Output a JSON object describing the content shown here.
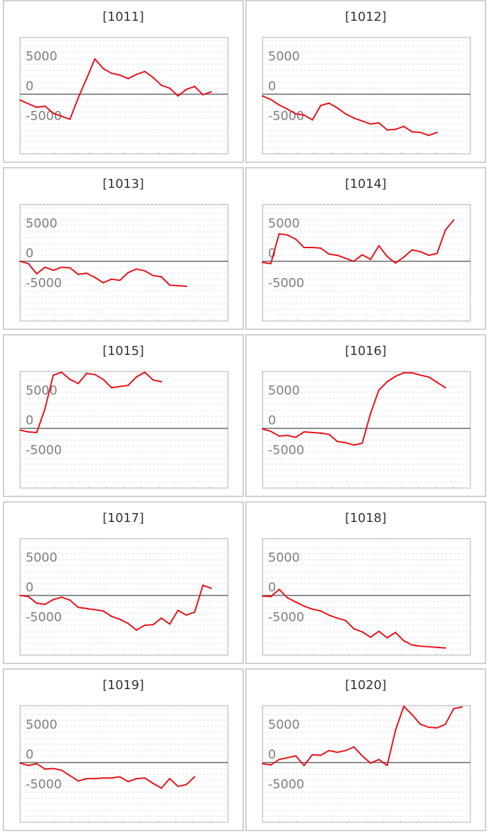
{
  "colors": {
    "series": "#e8101a",
    "axis": "#666666",
    "frame": "#c8c8c8",
    "grid": "#e4e4e4",
    "tick": "#808080",
    "border": "#d0d0d0"
  },
  "chart_data": [
    {
      "type": "line",
      "title": "[1011]",
      "yticks": [
        5000,
        0,
        -5000
      ],
      "ylim": [
        -7500,
        7500
      ],
      "grid": true,
      "values": [
        -1000,
        -1600,
        -2200,
        -2000,
        -3200,
        -3700,
        -4200,
        -600,
        2600,
        5900,
        4300,
        3500,
        3200,
        2600,
        3300,
        3800,
        2800,
        1500,
        1000,
        -300,
        800,
        1300,
        -100,
        400
      ]
    },
    {
      "type": "line",
      "title": "[1012]",
      "yticks": [
        5000,
        0,
        -5000
      ],
      "ylim": [
        -7500,
        7500
      ],
      "grid": true,
      "values": [
        -300,
        -900,
        -1800,
        -2500,
        -3300,
        -3500,
        -4300,
        -1900,
        -1500,
        -2300,
        -3300,
        -4000,
        -4500,
        -5000,
        -4800,
        -6000,
        -5900,
        -5400,
        -6300,
        -6400,
        -6900,
        -6400
      ]
    },
    {
      "type": "line",
      "title": "[1013]",
      "yticks": [
        5000,
        0,
        -5000
      ],
      "ylim": [
        -7500,
        7500
      ],
      "grid": true,
      "values": [
        0,
        -400,
        -2100,
        -1000,
        -1500,
        -1000,
        -1100,
        -2200,
        -2000,
        -2700,
        -3600,
        -3000,
        -3200,
        -1900,
        -1300,
        -1600,
        -2400,
        -2600,
        -4000,
        -4100,
        -4200
      ]
    },
    {
      "type": "line",
      "title": "[1014]",
      "yticks": [
        5000,
        0,
        -5000
      ],
      "ylim": [
        -7500,
        7500
      ],
      "grid": true,
      "values": [
        -200,
        -400,
        4600,
        4400,
        3700,
        2300,
        2300,
        2200,
        1200,
        1000,
        500,
        0,
        1100,
        300,
        2600,
        800,
        -300,
        700,
        1900,
        1600,
        1000,
        1300,
        5200,
        6900
      ]
    },
    {
      "type": "line",
      "title": "[1015]",
      "yticks": [
        5000,
        0,
        -5000
      ],
      "ylim": [
        -7500,
        7500
      ],
      "grid": true,
      "values": [
        -300,
        -600,
        -700,
        3300,
        8900,
        9400,
        8200,
        7500,
        9200,
        9000,
        8200,
        6800,
        7000,
        7200,
        8600,
        9400,
        8100,
        7800
      ]
    },
    {
      "type": "line",
      "title": "[1016]",
      "yticks": [
        5000,
        0,
        -5000
      ],
      "ylim": [
        -7500,
        7500
      ],
      "grid": true,
      "values": [
        -100,
        -500,
        -1300,
        -1200,
        -1500,
        -600,
        -700,
        -800,
        -1000,
        -2200,
        -2400,
        -2800,
        -2500,
        2500,
        6400,
        7800,
        8700,
        9300,
        9300,
        8900,
        8600,
        7700,
        6800
      ]
    },
    {
      "type": "line",
      "title": "[1017]",
      "yticks": [
        5000,
        0,
        -5000
      ],
      "ylim": [
        -7500,
        7500
      ],
      "grid": true,
      "values": [
        0,
        -200,
        -1300,
        -1500,
        -700,
        -300,
        -800,
        -2000,
        -2200,
        -2400,
        -2600,
        -3500,
        -4000,
        -4700,
        -5800,
        -5000,
        -4900,
        -3800,
        -4800,
        -2500,
        -3300,
        -2800,
        1700,
        1200
      ]
    },
    {
      "type": "line",
      "title": "[1018]",
      "yticks": [
        5000,
        0,
        -5000
      ],
      "ylim": [
        -7500,
        7500
      ],
      "grid": true,
      "values": [
        -100,
        -200,
        1000,
        -400,
        -1100,
        -1800,
        -2300,
        -2600,
        -3300,
        -3800,
        -4200,
        -5600,
        -6100,
        -7000,
        -6000,
        -7100,
        -6200,
        -7600,
        -8300,
        -8500,
        -8600,
        -8700,
        -8800
      ]
    },
    {
      "type": "line",
      "title": "[1019]",
      "yticks": [
        5000,
        0,
        -5000
      ],
      "ylim": [
        -7500,
        7500
      ],
      "grid": true,
      "values": [
        -100,
        -500,
        -200,
        -1100,
        -1000,
        -1300,
        -2200,
        -3100,
        -2700,
        -2700,
        -2600,
        -2600,
        -2400,
        -3200,
        -2700,
        -2600,
        -3500,
        -4300,
        -2700,
        -4000,
        -3700,
        -2400
      ]
    },
    {
      "type": "line",
      "title": "[1020]",
      "yticks": [
        5000,
        0,
        -5000
      ],
      "ylim": [
        -7500,
        7500
      ],
      "grid": true,
      "values": [
        -200,
        -400,
        500,
        800,
        1100,
        -500,
        1300,
        1200,
        2000,
        1700,
        2000,
        2600,
        1100,
        -100,
        500,
        -500,
        5400,
        9400,
        8000,
        6400,
        5900,
        5800,
        6400,
        9000,
        9300
      ]
    }
  ]
}
